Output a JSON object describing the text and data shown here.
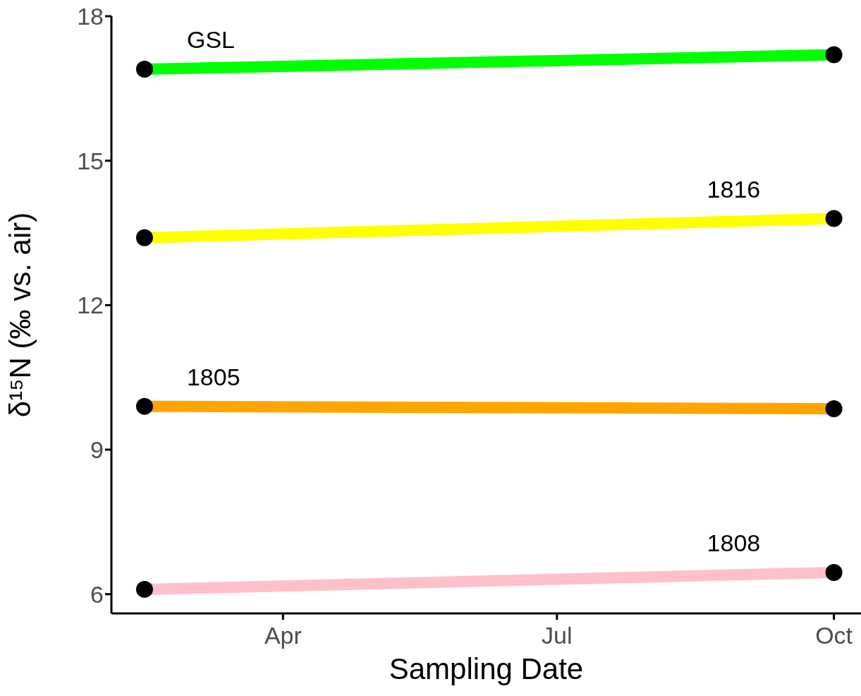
{
  "chart_data": {
    "type": "line",
    "xlabel": "Sampling Date",
    "ylabel": "δ¹⁵N (‰ vs. air)",
    "xlim": [
      "--02-03",
      "--10-10"
    ],
    "xticks": [
      {
        "value": "--04-01",
        "label": "Apr"
      },
      {
        "value": "--07-01",
        "label": "Jul"
      },
      {
        "value": "--10-01",
        "label": "Oct"
      }
    ],
    "ylim": [
      5.6,
      18
    ],
    "yticks": [
      6,
      9,
      12,
      15,
      18
    ],
    "grid": false,
    "legend": false,
    "marker": "circle",
    "line_style": "solid",
    "series": [
      {
        "name": "GSL",
        "color": "#00ff00",
        "x": [
          "--02-14",
          "--10-01"
        ],
        "values": [
          16.9,
          17.2
        ]
      },
      {
        "name": "1816",
        "color": "#ffff00",
        "x": [
          "--02-14",
          "--10-01"
        ],
        "values": [
          13.4,
          13.8
        ]
      },
      {
        "name": "1805",
        "color": "#ffa500",
        "x": [
          "--02-14",
          "--10-01"
        ],
        "values": [
          9.9,
          9.85
        ]
      },
      {
        "name": "1808",
        "color": "#ffc0cb",
        "x": [
          "--02-14",
          "--10-01"
        ],
        "values": [
          6.1,
          6.45
        ]
      }
    ]
  }
}
